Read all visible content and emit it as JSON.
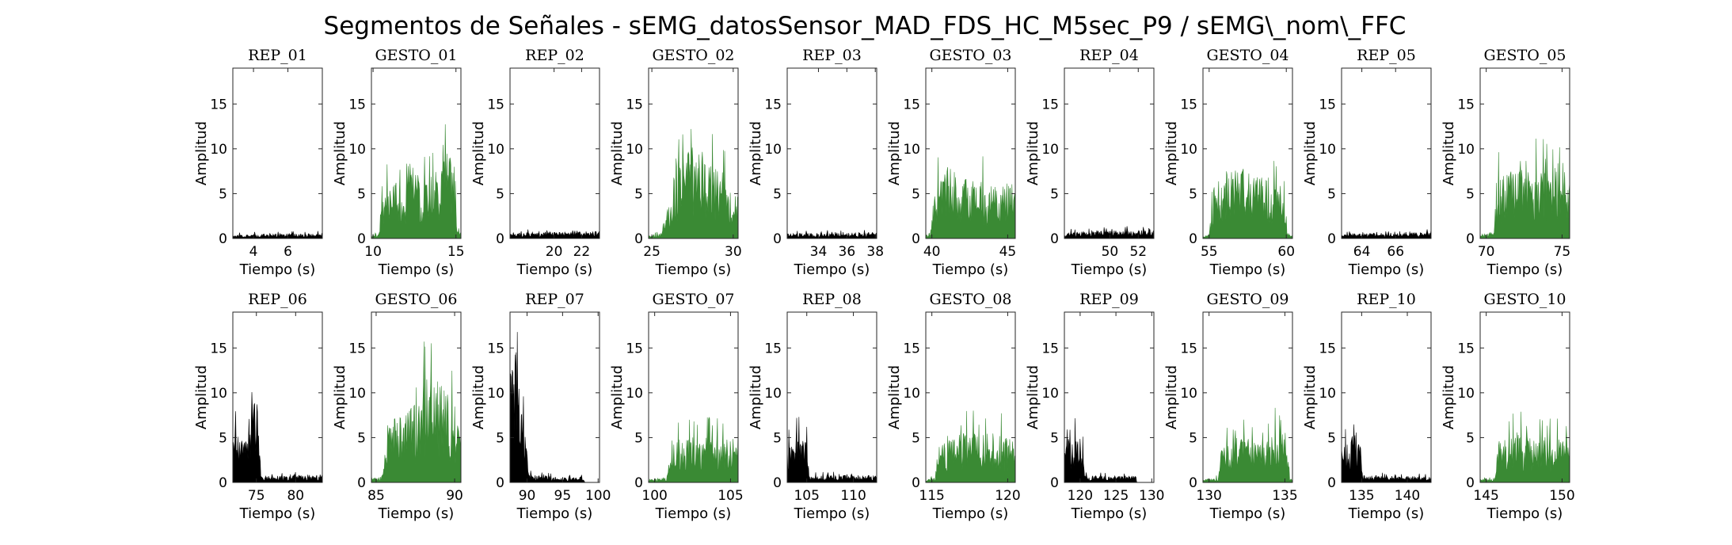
{
  "figure": {
    "title": "Segmentos de Señales - sEMG_datosSensor_MAD_FDS_HC_M5sec_P9 / sEMG\\_nom\\_FFC",
    "xlabel": "Tiempo (s)",
    "ylabel": "Amplitud"
  },
  "colors": {
    "rep": "#000000",
    "gesto": "#3a8a34",
    "axis": "#262626"
  },
  "chart_data": [
    {
      "type": "area",
      "title": "REP_01",
      "kind": "rep",
      "xlim": [
        2.8,
        8.0
      ],
      "ylim": [
        0,
        19
      ],
      "xticks": [
        4,
        6
      ],
      "yticks": [
        0,
        5,
        10,
        15
      ],
      "profile": [
        [
          2.8,
          0.4
        ],
        [
          8.0,
          0.5
        ]
      ]
    },
    {
      "type": "area",
      "title": "GESTO_01",
      "kind": "gesto",
      "xlim": [
        9.9,
        15.3
      ],
      "ylim": [
        0,
        19
      ],
      "xticks": [
        10,
        15
      ],
      "yticks": [
        0,
        5,
        10,
        15
      ],
      "profile": [
        [
          9.9,
          0.3
        ],
        [
          10.3,
          0.5
        ],
        [
          10.5,
          4
        ],
        [
          11,
          6
        ],
        [
          12,
          6
        ],
        [
          13,
          6.5
        ],
        [
          14,
          7
        ],
        [
          14.9,
          9.5
        ],
        [
          15.05,
          1
        ],
        [
          15.3,
          0.5
        ]
      ]
    },
    {
      "type": "area",
      "title": "REP_02",
      "kind": "rep",
      "xlim": [
        16.8,
        23.3
      ],
      "ylim": [
        0,
        19
      ],
      "xticks": [
        20,
        22
      ],
      "yticks": [
        0,
        5,
        10,
        15
      ],
      "profile": [
        [
          16.8,
          0.6
        ],
        [
          23.3,
          0.7
        ]
      ]
    },
    {
      "type": "area",
      "title": "GESTO_02",
      "kind": "gesto",
      "xlim": [
        24.8,
        30.3
      ],
      "ylim": [
        0,
        19
      ],
      "xticks": [
        25,
        30
      ],
      "yticks": [
        0,
        5,
        10,
        15
      ],
      "profile": [
        [
          24.8,
          0.3
        ],
        [
          25.6,
          0.5
        ],
        [
          25.9,
          3
        ],
        [
          26.5,
          7
        ],
        [
          27.5,
          9
        ],
        [
          28.5,
          8
        ],
        [
          29.5,
          6.5
        ],
        [
          30.0,
          4.5
        ],
        [
          30.3,
          4.5
        ]
      ]
    },
    {
      "type": "area",
      "title": "REP_03",
      "kind": "rep",
      "xlim": [
        31.8,
        38.1
      ],
      "ylim": [
        0,
        19
      ],
      "xticks": [
        34,
        36,
        38
      ],
      "yticks": [
        0,
        5,
        10,
        15
      ],
      "profile": [
        [
          31.8,
          0.5
        ],
        [
          38.1,
          0.6
        ]
      ]
    },
    {
      "type": "area",
      "title": "GESTO_03",
      "kind": "gesto",
      "xlim": [
        39.6,
        45.5
      ],
      "ylim": [
        0,
        19
      ],
      "xticks": [
        40,
        45
      ],
      "yticks": [
        0,
        5,
        10,
        15
      ],
      "profile": [
        [
          39.6,
          0.3
        ],
        [
          39.9,
          0.5
        ],
        [
          40.2,
          5
        ],
        [
          41,
          7
        ],
        [
          42,
          6
        ],
        [
          43,
          5.5
        ],
        [
          44,
          5.5
        ],
        [
          45,
          6
        ],
        [
          45.5,
          5
        ]
      ]
    },
    {
      "type": "area",
      "title": "REP_04",
      "kind": "rep",
      "xlim": [
        46.8,
        53.1
      ],
      "ylim": [
        0,
        19
      ],
      "xticks": [
        50,
        52
      ],
      "yticks": [
        0,
        5,
        10,
        15
      ],
      "profile": [
        [
          46.8,
          0.6
        ],
        [
          53.1,
          0.9
        ]
      ]
    },
    {
      "type": "area",
      "title": "GESTO_04",
      "kind": "gesto",
      "xlim": [
        54.6,
        60.4
      ],
      "ylim": [
        0,
        19
      ],
      "xticks": [
        55,
        60
      ],
      "yticks": [
        0,
        5,
        10,
        15
      ],
      "profile": [
        [
          54.6,
          0.3
        ],
        [
          55.0,
          0.5
        ],
        [
          55.3,
          5
        ],
        [
          56,
          6.5
        ],
        [
          57,
          7
        ],
        [
          58,
          6
        ],
        [
          59,
          6
        ],
        [
          59.8,
          5
        ],
        [
          60.1,
          0.4
        ],
        [
          60.4,
          0.3
        ]
      ]
    },
    {
      "type": "area",
      "title": "REP_05",
      "kind": "rep",
      "xlim": [
        62.8,
        68.1
      ],
      "ylim": [
        0,
        19
      ],
      "xticks": [
        64,
        66
      ],
      "yticks": [
        0,
        5,
        10,
        15
      ],
      "profile": [
        [
          62.8,
          0.5
        ],
        [
          68.1,
          0.6
        ]
      ]
    },
    {
      "type": "area",
      "title": "GESTO_05",
      "kind": "gesto",
      "xlim": [
        69.6,
        75.5
      ],
      "ylim": [
        0,
        19
      ],
      "xticks": [
        70,
        75
      ],
      "yticks": [
        0,
        5,
        10,
        15
      ],
      "profile": [
        [
          69.6,
          0.4
        ],
        [
          70.5,
          0.6
        ],
        [
          70.8,
          6
        ],
        [
          72,
          7
        ],
        [
          73,
          6.5
        ],
        [
          74,
          7
        ],
        [
          75,
          7.5
        ],
        [
          75.5,
          6
        ]
      ]
    },
    {
      "type": "area",
      "title": "REP_06",
      "kind": "rep",
      "xlim": [
        72.0,
        83.4
      ],
      "ylim": [
        0,
        19
      ],
      "xticks": [
        75,
        80
      ],
      "yticks": [
        0,
        5,
        10,
        15
      ],
      "profile": [
        [
          72.0,
          5.5
        ],
        [
          73.0,
          4.5
        ],
        [
          73.5,
          4
        ],
        [
          74.2,
          7
        ],
        [
          75.0,
          8
        ],
        [
          75.5,
          6
        ],
        [
          75.6,
          0.6
        ],
        [
          83.4,
          0.8
        ]
      ]
    },
    {
      "type": "area",
      "title": "GESTO_06",
      "kind": "gesto",
      "xlim": [
        84.7,
        90.4
      ],
      "ylim": [
        0,
        19
      ],
      "xticks": [
        85,
        90
      ],
      "yticks": [
        0,
        5,
        10,
        15
      ],
      "profile": [
        [
          84.7,
          0.4
        ],
        [
          85.4,
          0.6
        ],
        [
          85.7,
          6
        ],
        [
          86.5,
          7
        ],
        [
          87.5,
          8
        ],
        [
          88.5,
          12
        ],
        [
          89.3,
          10
        ],
        [
          90.1,
          6
        ],
        [
          90.4,
          5
        ]
      ]
    },
    {
      "type": "area",
      "title": "REP_07",
      "kind": "rep",
      "xlim": [
        87.6,
        100.2
      ],
      "ylim": [
        0,
        19
      ],
      "xticks": [
        90,
        95,
        100
      ],
      "yticks": [
        0,
        5,
        10,
        15
      ],
      "profile": [
        [
          87.6,
          11
        ],
        [
          88.3,
          16
        ],
        [
          88.9,
          9
        ],
        [
          89.5,
          6
        ],
        [
          90.0,
          3
        ],
        [
          90.2,
          1
        ],
        [
          91.0,
          0.7
        ],
        [
          98.0,
          0.5
        ],
        [
          98.1,
          0
        ],
        [
          100.2,
          0
        ]
      ]
    },
    {
      "type": "area",
      "title": "GESTO_07",
      "kind": "gesto",
      "xlim": [
        99.6,
        105.5
      ],
      "ylim": [
        0,
        19
      ],
      "xticks": [
        100,
        105
      ],
      "yticks": [
        0,
        5,
        10,
        15
      ],
      "profile": [
        [
          99.6,
          0.3
        ],
        [
          100.8,
          0.5
        ],
        [
          101.1,
          4.5
        ],
        [
          102,
          4.5
        ],
        [
          103,
          4.3
        ],
        [
          104,
          4.5
        ],
        [
          105,
          4.5
        ],
        [
          105.5,
          4
        ]
      ]
    },
    {
      "type": "area",
      "title": "REP_08",
      "kind": "rep",
      "xlim": [
        102.9,
        112.5
      ],
      "ylim": [
        0,
        19
      ],
      "xticks": [
        105,
        110
      ],
      "yticks": [
        0,
        5,
        10,
        15
      ],
      "profile": [
        [
          102.9,
          4
        ],
        [
          104,
          4.5
        ],
        [
          105.0,
          4.5
        ],
        [
          105.3,
          0.7
        ],
        [
          112.5,
          0.7
        ]
      ]
    },
    {
      "type": "area",
      "title": "GESTO_08",
      "kind": "gesto",
      "xlim": [
        114.6,
        120.5
      ],
      "ylim": [
        0,
        19
      ],
      "xticks": [
        115,
        120
      ],
      "yticks": [
        0,
        5,
        10,
        15
      ],
      "profile": [
        [
          114.6,
          0.3
        ],
        [
          115.2,
          0.5
        ],
        [
          115.4,
          4
        ],
        [
          116.5,
          5
        ],
        [
          117.5,
          5
        ],
        [
          118.5,
          5
        ],
        [
          120,
          4.5
        ],
        [
          120.5,
          4
        ]
      ]
    },
    {
      "type": "area",
      "title": "REP_09",
      "kind": "rep",
      "xlim": [
        117.8,
        130.3
      ],
      "ylim": [
        0,
        19
      ],
      "xticks": [
        120,
        125,
        130
      ],
      "yticks": [
        0,
        5,
        10,
        15
      ],
      "profile": [
        [
          117.8,
          5
        ],
        [
          118.4,
          6.5
        ],
        [
          119.3,
          5
        ],
        [
          120.3,
          4
        ],
        [
          120.6,
          0.7
        ],
        [
          127.8,
          0.6
        ],
        [
          127.9,
          0
        ],
        [
          130.3,
          0
        ]
      ]
    },
    {
      "type": "area",
      "title": "GESTO_09",
      "kind": "gesto",
      "xlim": [
        129.6,
        135.5
      ],
      "ylim": [
        0,
        19
      ],
      "xticks": [
        130,
        135
      ],
      "yticks": [
        0,
        5,
        10,
        15
      ],
      "profile": [
        [
          129.6,
          0.3
        ],
        [
          130.6,
          0.5
        ],
        [
          130.8,
          3.5
        ],
        [
          132,
          4.5
        ],
        [
          133,
          4
        ],
        [
          134.5,
          5
        ],
        [
          135.1,
          6
        ],
        [
          135.3,
          0.4
        ],
        [
          135.5,
          0.3
        ]
      ]
    },
    {
      "type": "area",
      "title": "REP_10",
      "kind": "rep",
      "xlim": [
        132.8,
        142.6
      ],
      "ylim": [
        0,
        19
      ],
      "xticks": [
        135,
        140
      ],
      "yticks": [
        0,
        5,
        10,
        15
      ],
      "profile": [
        [
          132.8,
          3.5
        ],
        [
          133.8,
          4.5
        ],
        [
          134.5,
          5.5
        ],
        [
          135.0,
          3
        ],
        [
          135.1,
          0.7
        ],
        [
          142.6,
          0.6
        ]
      ]
    },
    {
      "type": "area",
      "title": "GESTO_10",
      "kind": "gesto",
      "xlim": [
        144.6,
        150.5
      ],
      "ylim": [
        0,
        19
      ],
      "xticks": [
        145,
        150
      ],
      "yticks": [
        0,
        5,
        10,
        15
      ],
      "profile": [
        [
          144.6,
          0.3
        ],
        [
          145.6,
          0.5
        ],
        [
          145.8,
          4
        ],
        [
          147,
          5
        ],
        [
          148,
          4.5
        ],
        [
          149.5,
          4.5
        ],
        [
          150.5,
          4
        ]
      ]
    }
  ]
}
